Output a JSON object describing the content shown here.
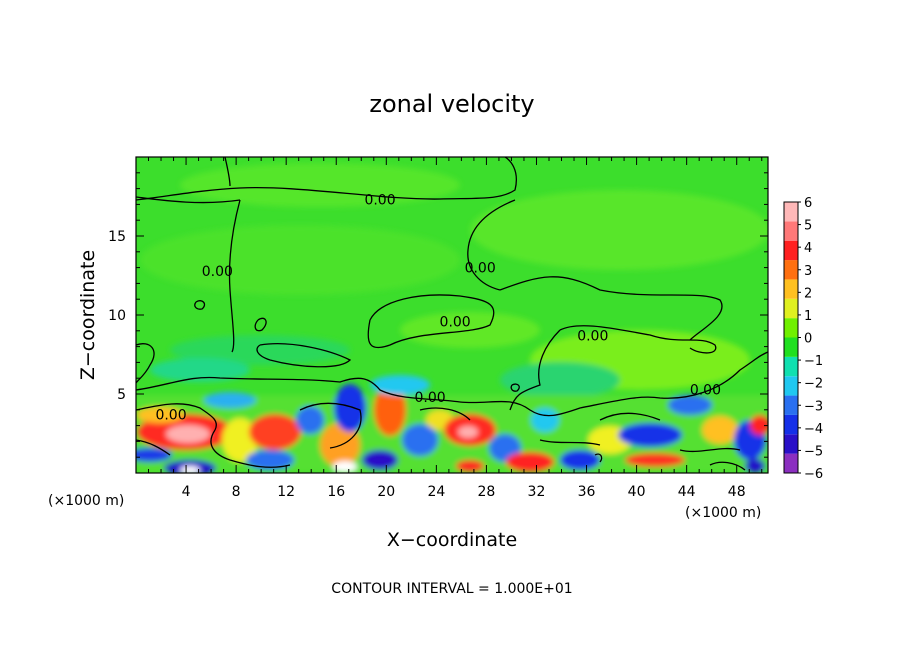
{
  "chart_data": {
    "type": "heatmap",
    "title": "zonal velocity",
    "xlabel": "X−coordinate",
    "ylabel": "Z−coordinate",
    "x_unit_left": "(×1000 m)",
    "x_unit_right": "(×1000 m)",
    "xlim": [
      0,
      50.5
    ],
    "ylim": [
      0,
      20
    ],
    "x_ticks": [
      4,
      8,
      12,
      16,
      20,
      24,
      28,
      32,
      36,
      40,
      44,
      48
    ],
    "x_tick_labels": [
      "4",
      "8",
      "12",
      "16",
      "20",
      "24",
      "28",
      "32",
      "36",
      "40",
      "44",
      "48"
    ],
    "y_ticks": [
      5,
      10,
      15
    ],
    "y_tick_labels": [
      "5",
      "10",
      "15"
    ],
    "colorbar": {
      "levels": [
        -6,
        -5,
        -4,
        -3,
        -2,
        -1,
        0,
        1,
        2,
        3,
        4,
        5,
        6
      ],
      "labels": [
        "−6",
        "−5",
        "−4",
        "−3",
        "−2",
        "−1",
        "0",
        "1",
        "2",
        "3",
        "4",
        "5",
        "6"
      ],
      "colors": [
        "#8b2fc0",
        "#2a10c8",
        "#1530e8",
        "#2a70f0",
        "#20c8f0",
        "#10e0b0",
        "#20e020",
        "#70f000",
        "#e0f020",
        "#ffc020",
        "#ff7010",
        "#ff2020",
        "#ff7878",
        "#ffb8b8"
      ]
    },
    "contour_label": "0.00",
    "contour_labels": [
      {
        "x": 19.5,
        "z": 17.3
      },
      {
        "x": 6.5,
        "z": 12.8
      },
      {
        "x": 27.5,
        "z": 13.0
      },
      {
        "x": 25.5,
        "z": 9.6
      },
      {
        "x": 36.5,
        "z": 8.7
      },
      {
        "x": 23.5,
        "z": 4.8
      },
      {
        "x": 2.8,
        "z": 3.7
      },
      {
        "x": 45.5,
        "z": 5.3
      }
    ],
    "footnote": "CONTOUR INTERVAL = 1.000E+01"
  }
}
